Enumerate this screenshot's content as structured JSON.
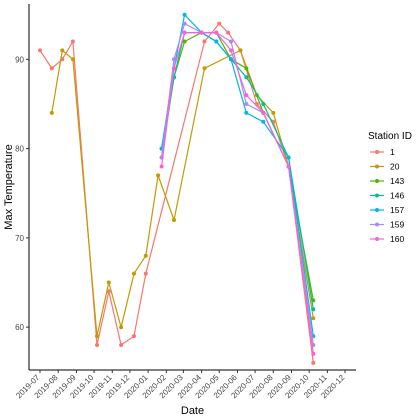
{
  "chart_data": {
    "type": "line",
    "xlabel": "Date",
    "ylabel": "Max Temperature",
    "x_ticks": [
      "2019-07",
      "2019-08",
      "2019-09",
      "2019-10",
      "2019-11",
      "2019-12",
      "2020-01",
      "2020-02",
      "2020-03",
      "2020-04",
      "2020-05",
      "2020-06",
      "2020-07",
      "2020-08",
      "2020-09",
      "2020-10",
      "2020-11",
      "2020-12"
    ],
    "y_ticks": [
      60,
      70,
      80,
      90
    ],
    "ylim": [
      55.2,
      96.2
    ],
    "grid": false,
    "legend": {
      "title": "Station ID",
      "position": "right"
    },
    "series": [
      {
        "name": "1",
        "color": "#F8766D",
        "points": [
          [
            "2019-07-01",
            91
          ],
          [
            "2019-07-21",
            89
          ],
          [
            "2019-08-08",
            90
          ],
          [
            "2019-08-26",
            92
          ],
          [
            "2019-10-06",
            58
          ],
          [
            "2019-10-26",
            64
          ],
          [
            "2019-11-16",
            58
          ],
          [
            "2019-12-08",
            59
          ],
          [
            "2019-12-28",
            66
          ],
          [
            "2020-04-06",
            92
          ],
          [
            "2020-05-01",
            94
          ],
          [
            "2020-05-16",
            93
          ],
          [
            "2020-06-06",
            91
          ],
          [
            "2020-07-04",
            85
          ],
          [
            "2020-08-01",
            83
          ],
          [
            "2020-08-27",
            78
          ],
          [
            "2020-10-08",
            56
          ]
        ]
      },
      {
        "name": "20",
        "color": "#C49A00",
        "points": [
          [
            "2019-07-21",
            84
          ],
          [
            "2019-08-08",
            91
          ],
          [
            "2019-08-26",
            90
          ],
          [
            "2019-10-06",
            59
          ],
          [
            "2019-10-26",
            65
          ],
          [
            "2019-11-16",
            60
          ],
          [
            "2019-12-08",
            66
          ],
          [
            "2019-12-28",
            68
          ],
          [
            "2020-01-18",
            77
          ],
          [
            "2020-02-14",
            72
          ],
          [
            "2020-04-06",
            89
          ],
          [
            "2020-06-06",
            91
          ],
          [
            "2020-07-04",
            86
          ],
          [
            "2020-08-01",
            84
          ],
          [
            "2020-08-27",
            78
          ],
          [
            "2020-10-08",
            61
          ]
        ]
      },
      {
        "name": "143",
        "color": "#53B400",
        "points": [
          [
            "2020-01-24",
            79
          ],
          [
            "2020-02-14",
            88
          ],
          [
            "2020-03-03",
            92
          ],
          [
            "2020-04-01",
            93
          ],
          [
            "2020-04-26",
            93
          ],
          [
            "2020-05-21",
            90
          ],
          [
            "2020-06-16",
            89
          ],
          [
            "2020-07-15",
            84
          ],
          [
            "2020-08-27",
            78
          ],
          [
            "2020-10-08",
            63
          ]
        ]
      },
      {
        "name": "146",
        "color": "#00C094",
        "points": [
          [
            "2020-01-24",
            80
          ],
          [
            "2020-02-14",
            88
          ],
          [
            "2020-03-03",
            93
          ],
          [
            "2020-04-01",
            93
          ],
          [
            "2020-04-26",
            92
          ],
          [
            "2020-05-21",
            90
          ],
          [
            "2020-06-16",
            88
          ],
          [
            "2020-07-15",
            85
          ],
          [
            "2020-08-27",
            79
          ],
          [
            "2020-10-08",
            62
          ]
        ]
      },
      {
        "name": "157",
        "color": "#00B6EB",
        "points": [
          [
            "2020-01-24",
            80
          ],
          [
            "2020-02-14",
            89
          ],
          [
            "2020-03-03",
            95
          ],
          [
            "2020-04-01",
            93
          ],
          [
            "2020-04-26",
            92
          ],
          [
            "2020-05-21",
            90
          ],
          [
            "2020-06-16",
            84
          ],
          [
            "2020-07-15",
            83
          ],
          [
            "2020-08-27",
            79
          ],
          [
            "2020-10-08",
            59
          ]
        ]
      },
      {
        "name": "159",
        "color": "#A58AFF",
        "points": [
          [
            "2020-01-24",
            79
          ],
          [
            "2020-02-14",
            90
          ],
          [
            "2020-03-03",
            94
          ],
          [
            "2020-04-01",
            93
          ],
          [
            "2020-04-26",
            93
          ],
          [
            "2020-05-21",
            92
          ],
          [
            "2020-06-16",
            85
          ],
          [
            "2020-07-15",
            84
          ],
          [
            "2020-08-27",
            78
          ],
          [
            "2020-10-08",
            58
          ]
        ]
      },
      {
        "name": "160",
        "color": "#FB61D7",
        "points": [
          [
            "2020-01-24",
            78
          ],
          [
            "2020-02-14",
            89
          ],
          [
            "2020-03-03",
            93
          ],
          [
            "2020-04-01",
            93
          ],
          [
            "2020-04-26",
            93
          ],
          [
            "2020-05-21",
            91
          ],
          [
            "2020-06-16",
            86
          ],
          [
            "2020-07-15",
            84
          ],
          [
            "2020-08-27",
            78
          ],
          [
            "2020-10-08",
            57
          ]
        ]
      }
    ]
  }
}
